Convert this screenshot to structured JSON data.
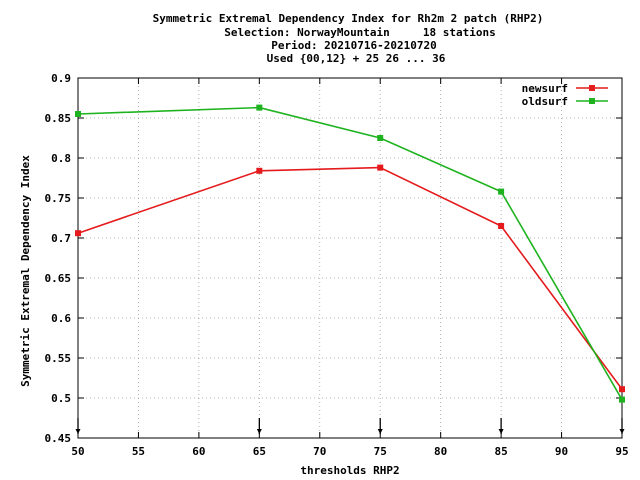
{
  "chart_data": {
    "type": "line",
    "title_lines": [
      "Symmetric Extremal Dependency Index  for Rh2m 2 patch (RHP2)",
      "Selection: NorwayMountain     18 stations",
      "Period: 20210716-20210720",
      "Used {00,12} + 25 26 ... 36"
    ],
    "xlabel": "thresholds RHP2",
    "ylabel": "Symmetric Extremal Dependency Index",
    "xlim": [
      50,
      95
    ],
    "ylim": [
      0.45,
      0.9
    ],
    "xticks": [
      50,
      55,
      60,
      65,
      70,
      75,
      80,
      85,
      90,
      95
    ],
    "yticks": [
      0.45,
      0.5,
      0.55,
      0.6,
      0.65,
      0.7,
      0.75,
      0.8,
      0.85,
      0.9
    ],
    "ytick_labels": [
      "0.45",
      "0.5",
      "0.55",
      "0.6",
      "0.65",
      "0.7",
      "0.75",
      "0.8",
      "0.85",
      "0.9"
    ],
    "grid": true,
    "legend_position": "top-right",
    "x": [
      50,
      65,
      75,
      85,
      95
    ],
    "series": [
      {
        "name": "newsurf",
        "color": "#e41a1c",
        "values": [
          0.706,
          0.784,
          0.788,
          0.715,
          0.511
        ]
      },
      {
        "name": "oldsurf",
        "color": "#1eb31e",
        "values": [
          0.855,
          0.863,
          0.825,
          0.758,
          0.498
        ]
      }
    ],
    "marker_x": [
      50,
      65,
      75,
      85,
      95
    ]
  }
}
